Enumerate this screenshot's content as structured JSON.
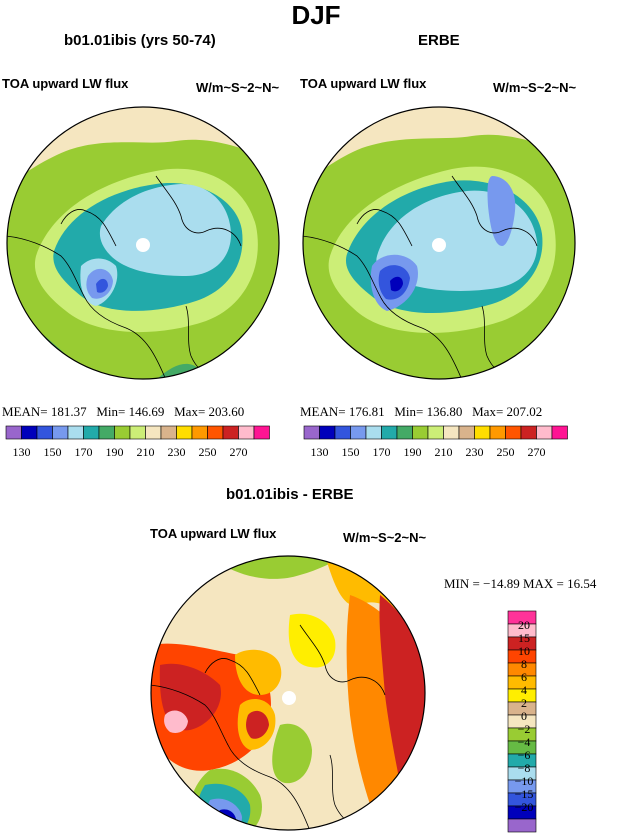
{
  "page": {
    "title": "DJF"
  },
  "panels": [
    {
      "id": "model",
      "subtitle": "b01.01ibis (yrs 50-74)",
      "variable": "TOA upward LW flux",
      "units": "W/m~S~2~N~",
      "stats": {
        "mean_label": "MEAN=",
        "mean": "181.37",
        "min_label": "Min=",
        "min": "146.69",
        "max_label": "Max=",
        "max": "203.60"
      }
    },
    {
      "id": "obs",
      "subtitle": "ERBE",
      "variable": "TOA upward LW flux",
      "units": "W/m~S~2~N~",
      "stats": {
        "mean_label": "MEAN=",
        "mean": "176.81",
        "min_label": "Min=",
        "min": "136.80",
        "max_label": "Max=",
        "max": "207.02"
      }
    },
    {
      "id": "diff",
      "subtitle": "b01.01ibis - ERBE",
      "variable": "TOA upward LW flux",
      "units": "W/m~S~2~N~",
      "stats": {
        "text": "MIN = −14.89  MAX =  16.54"
      }
    }
  ],
  "colorbar_abs": {
    "colors": [
      "#9966cc",
      "#0000bb",
      "#3355dd",
      "#7799ee",
      "#aaddee",
      "#22aaaa",
      "#44aa66",
      "#99cc33",
      "#ccee77",
      "#f5e6c0",
      "#d9b38c",
      "#ffdd00",
      "#ff9900",
      "#ff5500",
      "#cc2222",
      "#ffbbcc",
      "#ff1493"
    ],
    "labels": [
      "130",
      "150",
      "170",
      "190",
      "210",
      "230",
      "250",
      "270"
    ]
  },
  "colorbar_diff": {
    "colors": [
      "#ff3399",
      "#ffbbcc",
      "#cc2222",
      "#ff4400",
      "#ff8800",
      "#ffbb00",
      "#ffee00",
      "#d9b38c",
      "#f5e6c0",
      "#99cc33",
      "#66bb44",
      "#22aaaa",
      "#aaddee",
      "#7799ee",
      "#3355dd",
      "#0000bb",
      "#9966cc"
    ],
    "labels": [
      "20",
      "15",
      "10",
      "8",
      "6",
      "4",
      "2",
      "0",
      "−2",
      "−4",
      "−6",
      "−8",
      "−10",
      "−15",
      "−20"
    ]
  }
}
